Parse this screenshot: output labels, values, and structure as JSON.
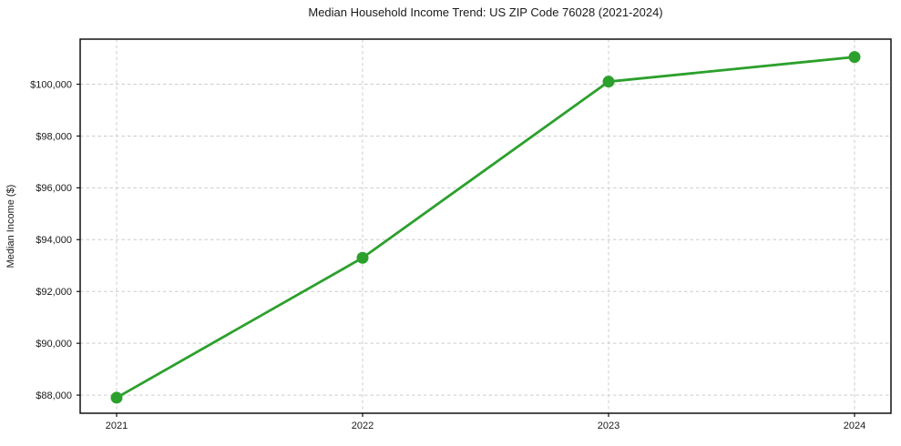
{
  "figure": {
    "title": "Median Household Income Trend: US ZIP Code 76028 (2021-2024)"
  },
  "chart_data": {
    "type": "line",
    "title": "Median Household Income Trend: US ZIP Code 76028 (2021-2024)",
    "xlabel": "",
    "ylabel": "Median Income ($)",
    "x": [
      "2021",
      "2022",
      "2023",
      "2024"
    ],
    "values": [
      87900,
      93300,
      100100,
      101050
    ],
    "xtick_labels": [
      "2021",
      "2022",
      "2023",
      "2024"
    ],
    "yticks": [
      88000,
      90000,
      92000,
      94000,
      96000,
      98000,
      100000
    ],
    "ytick_labels": [
      "$88,000",
      "$90,000",
      "$92,000",
      "$94,000",
      "$96,000",
      "$98,000",
      "$100,000"
    ],
    "ylim": [
      87300,
      101740
    ],
    "grid": true,
    "legend": false,
    "line_color": "#2ca02c",
    "marker": "circle",
    "marker_color": "#2ca02c",
    "grid_color": "#cccccc",
    "axis_color": "#111111",
    "text_color": "#1a1a1a",
    "background": "#ffffff"
  }
}
